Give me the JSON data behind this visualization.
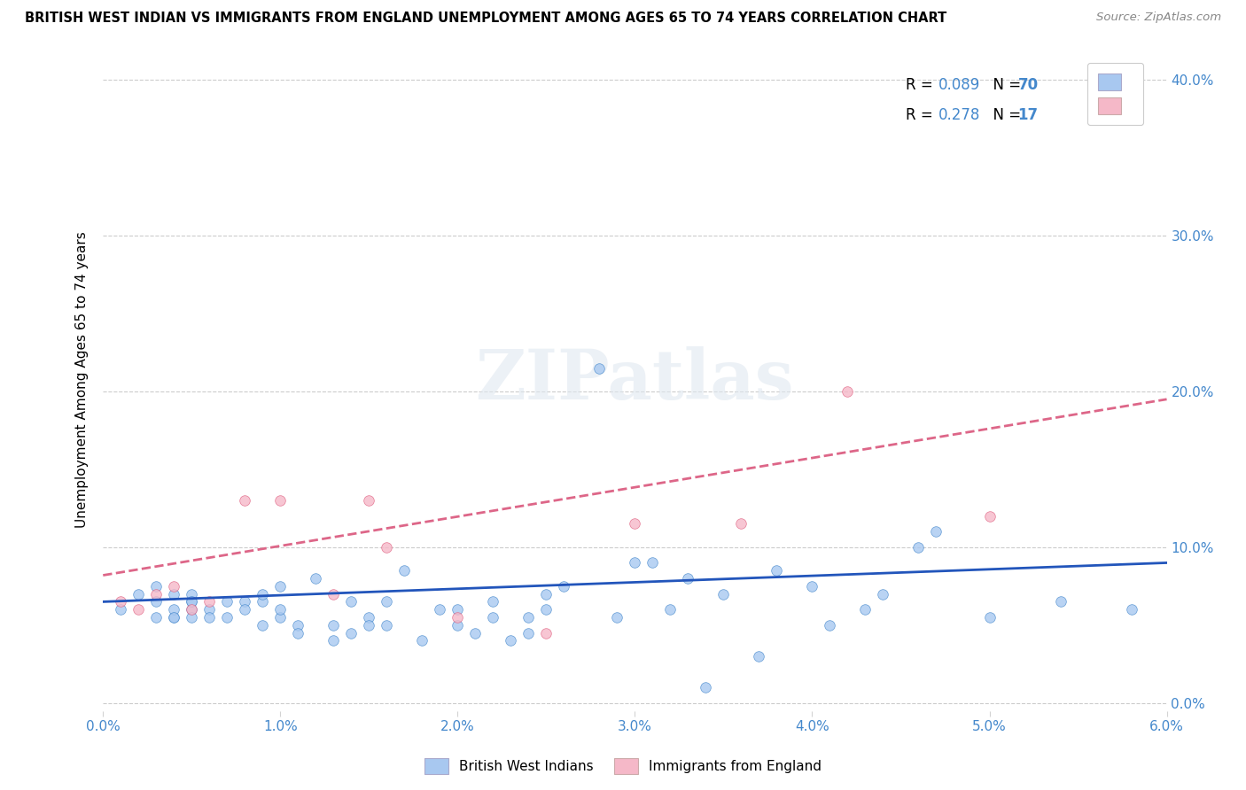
{
  "title": "BRITISH WEST INDIAN VS IMMIGRANTS FROM ENGLAND UNEMPLOYMENT AMONG AGES 65 TO 74 YEARS CORRELATION CHART",
  "source": "Source: ZipAtlas.com",
  "ylabel": "Unemployment Among Ages 65 to 74 years",
  "xlim": [
    0.0,
    0.06
  ],
  "ylim": [
    -0.005,
    0.42
  ],
  "xticks": [
    0.0,
    0.01,
    0.02,
    0.03,
    0.04,
    0.05,
    0.06
  ],
  "xticklabels": [
    "0.0%",
    "1.0%",
    "2.0%",
    "3.0%",
    "4.0%",
    "5.0%",
    "6.0%"
  ],
  "yticks": [
    0.0,
    0.1,
    0.2,
    0.3,
    0.4
  ],
  "yticklabels": [
    "0.0%",
    "10.0%",
    "20.0%",
    "30.0%",
    "40.0%"
  ],
  "R_blue": "0.089",
  "N_blue": "70",
  "R_pink": "0.278",
  "N_pink": "17",
  "blue_fill": "#a8c8f0",
  "pink_fill": "#f5b8c8",
  "blue_edge": "#4488cc",
  "pink_edge": "#e06080",
  "blue_line_color": "#2255bb",
  "pink_line_color": "#dd6688",
  "tick_color": "#4488cc",
  "marker_size": 70,
  "blue_x": [
    0.001,
    0.002,
    0.003,
    0.003,
    0.003,
    0.004,
    0.004,
    0.004,
    0.004,
    0.005,
    0.005,
    0.005,
    0.005,
    0.005,
    0.006,
    0.006,
    0.007,
    0.007,
    0.008,
    0.008,
    0.009,
    0.009,
    0.009,
    0.01,
    0.01,
    0.01,
    0.011,
    0.011,
    0.012,
    0.013,
    0.013,
    0.014,
    0.014,
    0.015,
    0.015,
    0.016,
    0.016,
    0.017,
    0.018,
    0.019,
    0.02,
    0.02,
    0.021,
    0.022,
    0.022,
    0.023,
    0.024,
    0.024,
    0.025,
    0.025,
    0.026,
    0.028,
    0.029,
    0.03,
    0.031,
    0.032,
    0.033,
    0.034,
    0.035,
    0.037,
    0.038,
    0.04,
    0.041,
    0.043,
    0.044,
    0.046,
    0.047,
    0.05,
    0.054,
    0.058
  ],
  "blue_y": [
    0.06,
    0.07,
    0.055,
    0.075,
    0.065,
    0.055,
    0.06,
    0.07,
    0.055,
    0.06,
    0.065,
    0.055,
    0.07,
    0.065,
    0.06,
    0.055,
    0.065,
    0.055,
    0.065,
    0.06,
    0.05,
    0.065,
    0.07,
    0.075,
    0.055,
    0.06,
    0.05,
    0.045,
    0.08,
    0.04,
    0.05,
    0.045,
    0.065,
    0.055,
    0.05,
    0.05,
    0.065,
    0.085,
    0.04,
    0.06,
    0.05,
    0.06,
    0.045,
    0.055,
    0.065,
    0.04,
    0.045,
    0.055,
    0.06,
    0.07,
    0.075,
    0.215,
    0.055,
    0.09,
    0.09,
    0.06,
    0.08,
    0.01,
    0.07,
    0.03,
    0.085,
    0.075,
    0.05,
    0.06,
    0.07,
    0.1,
    0.11,
    0.055,
    0.065,
    0.06
  ],
  "pink_x": [
    0.001,
    0.002,
    0.003,
    0.004,
    0.005,
    0.006,
    0.008,
    0.01,
    0.013,
    0.015,
    0.016,
    0.02,
    0.025,
    0.03,
    0.036,
    0.042,
    0.05
  ],
  "pink_y": [
    0.065,
    0.06,
    0.07,
    0.075,
    0.06,
    0.065,
    0.13,
    0.13,
    0.07,
    0.13,
    0.1,
    0.055,
    0.045,
    0.115,
    0.115,
    0.2,
    0.12
  ],
  "watermark_text": "ZIPatlas",
  "blue_trend_x": [
    0.0,
    0.06
  ],
  "blue_trend_y": [
    0.065,
    0.09
  ],
  "pink_trend_x": [
    0.0,
    0.06
  ],
  "pink_trend_y": [
    0.082,
    0.195
  ],
  "legend_label_blue": "British West Indians",
  "legend_label_pink": "Immigrants from England"
}
